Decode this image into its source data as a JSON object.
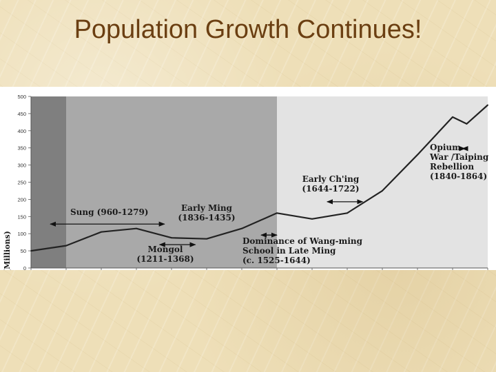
{
  "slide": {
    "title": "Population Growth Continues!"
  },
  "chart_data": {
    "type": "line",
    "title": "",
    "xlabel": "",
    "ylabel": "Population (Millions)",
    "ylim": [
      0,
      500
    ],
    "xlim": [
      800,
      1900
    ],
    "yticks": [
      0,
      50,
      100,
      150,
      200,
      250,
      300,
      350,
      400,
      450,
      500
    ],
    "xticks": [
      800,
      1000,
      1100,
      1200,
      1300,
      1400,
      1500,
      1600,
      1650,
      1700,
      1750,
      1800,
      1850,
      1900
    ],
    "shaded_periods": [
      {
        "from": 800,
        "to": 1000,
        "shade": "dark"
      },
      {
        "from": 1000,
        "to": 1600,
        "shade": "medium"
      }
    ],
    "series": [
      {
        "x": [
          800,
          1000,
          1100,
          1200,
          1300,
          1400,
          1500,
          1600,
          1650,
          1700,
          1750,
          1800,
          1850,
          1870,
          1900
        ],
        "values": [
          50,
          65,
          105,
          115,
          88,
          85,
          115,
          160,
          143,
          160,
          225,
          330,
          440,
          420,
          475
        ]
      }
    ],
    "annotations": [
      {
        "lines": [
          "Sung (960-1279)"
        ],
        "from": 800,
        "to": 1280,
        "arrow_y": 128
      },
      {
        "lines": [
          "Early Ming",
          "(1836-1435)"
        ]
      },
      {
        "lines": [
          "Mongol",
          "(1211-1368)"
        ],
        "from": 1211,
        "to": 1368,
        "arrow_y": 68
      },
      {
        "lines": [
          "Dominance of Wang-ming",
          "School in Late Ming",
          "(c. 1525-1644)"
        ],
        "from": 1500,
        "to": 1600,
        "arrow_y": 96
      },
      {
        "lines": [
          "Early Ch'ing",
          "(1644-1722)"
        ],
        "from": 1644,
        "to": 1722,
        "arrow_y": 193
      },
      {
        "lines": [
          "Opium",
          "War /Taiping",
          "Rebellion",
          "(1840-1864)"
        ],
        "from": 1840,
        "to": 1864,
        "arrow_y": 348
      }
    ]
  }
}
